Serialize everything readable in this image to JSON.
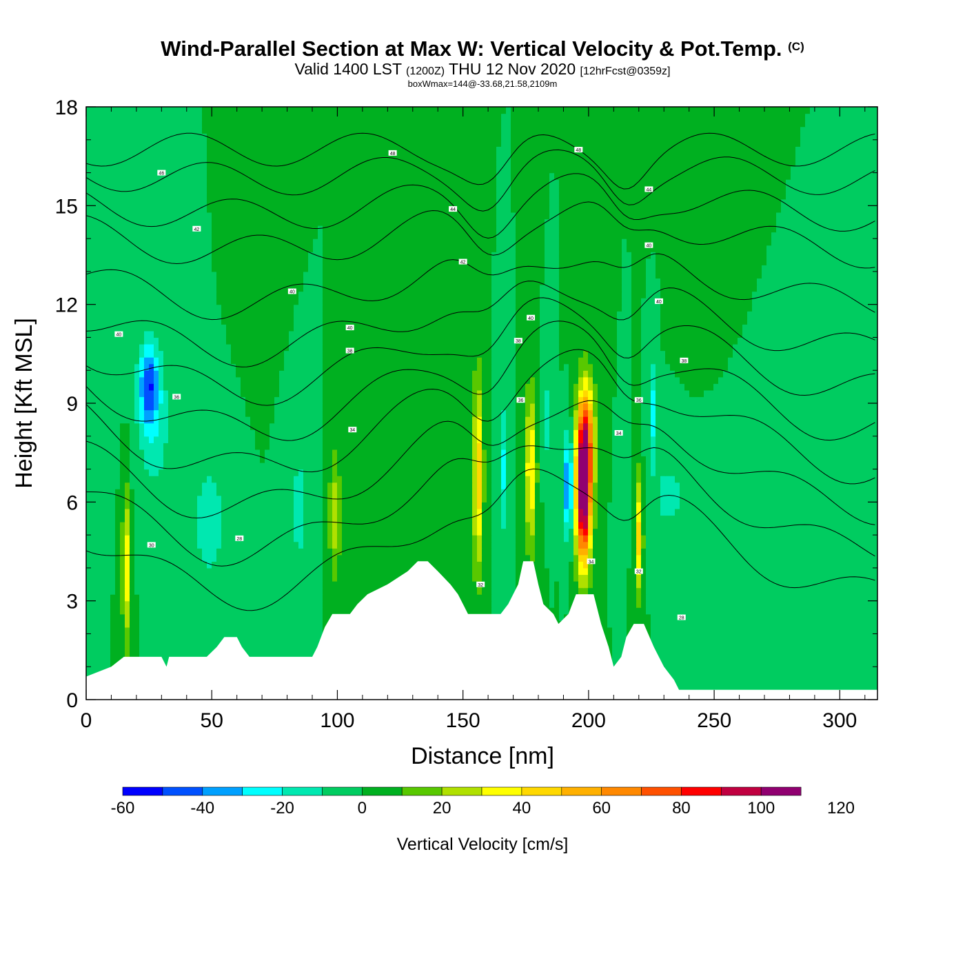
{
  "header": {
    "title": "Wind-Parallel Section at Max W: Vertical Velocity & Pot.Temp.",
    "copyright": "(C)",
    "valid_prefix": "Valid 1400 LST",
    "valid_zulu": "(1200Z)",
    "valid_date": "THU 12 Nov 2020",
    "forecast": "[12hrFcst@0359z]",
    "box_info": "boxWmax=144@-33.68,21.58,2109m"
  },
  "chart_data": {
    "type": "heatmap",
    "title": "Wind-Parallel Section at Max W: Vertical Velocity & Pot.Temp.",
    "xlabel": "Distance [nm]",
    "ylabel": "Height [Kft MSL]",
    "xlim": [
      0,
      315
    ],
    "ylim": [
      0,
      18
    ],
    "xticks": [
      0,
      50,
      100,
      150,
      200,
      250,
      300
    ],
    "yticks": [
      0,
      3,
      6,
      9,
      12,
      15,
      18
    ],
    "colorbar": {
      "label": "Vertical Velocity [cm/s]",
      "ticks": [
        -60,
        -40,
        -20,
        0,
        20,
        40,
        60,
        80,
        100,
        120
      ],
      "levels": [
        -60,
        -50,
        -40,
        -30,
        -20,
        -10,
        0,
        10,
        20,
        30,
        40,
        50,
        60,
        70,
        80,
        90,
        100,
        110,
        120
      ],
      "colors": [
        "#0000ff",
        "#0050ff",
        "#00a0ff",
        "#00ffff",
        "#00e8b0",
        "#00cc60",
        "#00b020",
        "#58c800",
        "#b0e000",
        "#ffff00",
        "#ffd800",
        "#ffb000",
        "#ff8800",
        "#ff5000",
        "#ff0000",
        "#c00040",
        "#900070"
      ]
    },
    "background_w": 0,
    "terrain": [
      [
        0,
        0.7
      ],
      [
        10,
        1.0
      ],
      [
        15,
        1.3
      ],
      [
        30,
        1.3
      ],
      [
        32,
        1.0
      ],
      [
        33,
        1.3
      ],
      [
        48,
        1.3
      ],
      [
        52,
        1.6
      ],
      [
        55,
        1.9
      ],
      [
        60,
        1.9
      ],
      [
        62,
        1.6
      ],
      [
        65,
        1.3
      ],
      [
        90,
        1.3
      ],
      [
        92,
        1.6
      ],
      [
        95,
        2.2
      ],
      [
        98,
        2.6
      ],
      [
        105,
        2.6
      ],
      [
        108,
        2.9
      ],
      [
        112,
        3.2
      ],
      [
        120,
        3.5
      ],
      [
        128,
        3.9
      ],
      [
        132,
        4.2
      ],
      [
        136,
        4.2
      ],
      [
        140,
        3.9
      ],
      [
        145,
        3.5
      ],
      [
        148,
        3.2
      ],
      [
        150,
        2.9
      ],
      [
        152,
        2.6
      ],
      [
        165,
        2.6
      ],
      [
        168,
        2.9
      ],
      [
        172,
        3.5
      ],
      [
        174,
        4.2
      ],
      [
        178,
        4.2
      ],
      [
        180,
        3.5
      ],
      [
        182,
        2.9
      ],
      [
        186,
        2.6
      ],
      [
        188,
        2.3
      ],
      [
        192,
        2.6
      ],
      [
        195,
        3.2
      ],
      [
        202,
        3.2
      ],
      [
        205,
        2.3
      ],
      [
        208,
        1.6
      ],
      [
        210,
        1.0
      ],
      [
        213,
        1.3
      ],
      [
        215,
        1.9
      ],
      [
        218,
        2.3
      ],
      [
        222,
        2.3
      ],
      [
        226,
        1.6
      ],
      [
        230,
        1.0
      ],
      [
        234,
        0.6
      ],
      [
        236,
        0.3
      ],
      [
        315,
        0.3
      ]
    ],
    "w_features": [
      {
        "x": 25,
        "y": 9.6,
        "sx": 4,
        "sy": 1.2,
        "w": -42
      },
      {
        "x": 27,
        "y": 8.2,
        "sx": 7,
        "sy": 2.2,
        "w": -16
      },
      {
        "x": 16,
        "y": 4.0,
        "sx": 1.6,
        "sy": 2.5,
        "w": 36
      },
      {
        "x": 49,
        "y": 5.4,
        "sx": 6,
        "sy": 1.8,
        "w": -18
      },
      {
        "x": 85,
        "y": 5.8,
        "sx": 4,
        "sy": 2.0,
        "w": -14
      },
      {
        "x": 99,
        "y": 5.6,
        "sx": 2.5,
        "sy": 2.0,
        "w": 25
      },
      {
        "x": 156,
        "y": 6.8,
        "sx": 2.0,
        "sy": 3.0,
        "w": 48
      },
      {
        "x": 166,
        "y": 7.0,
        "sx": 2.0,
        "sy": 2.0,
        "w": -22
      },
      {
        "x": 177,
        "y": 7.0,
        "sx": 2.2,
        "sy": 2.5,
        "w": 42
      },
      {
        "x": 183,
        "y": 8.5,
        "sx": 2.0,
        "sy": 1.5,
        "w": -15
      },
      {
        "x": 192,
        "y": 6.5,
        "sx": 1.5,
        "sy": 1.5,
        "w": -55
      },
      {
        "x": 198,
        "y": 6.2,
        "sx": 3.0,
        "sy": 2.2,
        "w": 108
      },
      {
        "x": 199,
        "y": 8.0,
        "sx": 3.5,
        "sy": 1.8,
        "w": 55
      },
      {
        "x": 220,
        "y": 5.0,
        "sx": 1.6,
        "sy": 1.8,
        "w": 45
      },
      {
        "x": 226,
        "y": 8.8,
        "sx": 1.2,
        "sy": 1.5,
        "w": -25
      },
      {
        "x": 232,
        "y": 6.2,
        "sx": 9,
        "sy": 1.6,
        "w": -12
      },
      {
        "x": 135,
        "y": 16.0,
        "sx": 6,
        "sy": 2.0,
        "w": 6
      },
      {
        "x": 70,
        "y": 14.0,
        "sx": 5,
        "sy": 2.0,
        "w": 5
      },
      {
        "x": 240,
        "y": 15.0,
        "sx": 5,
        "sy": 3.0,
        "w": 4
      }
    ],
    "isentropes": [
      {
        "label": "48",
        "y0": 16.7,
        "slope": 0.0
      },
      {
        "label": "46",
        "y0": 16.0,
        "slope": 0.01
      },
      {
        "label": "44",
        "y0": 15.1,
        "slope": 0.02
      },
      {
        "label": "42",
        "y0": 14.2,
        "slope": 0.03
      },
      {
        "label": "40",
        "y0": 12.8,
        "slope": 0.04
      },
      {
        "label": "38",
        "y0": 11.6,
        "slope": 0.05
      },
      {
        "label": "36",
        "y0": 10.6,
        "slope": 0.06
      },
      {
        "label": "34",
        "y0": 9.6,
        "slope": 0.07
      },
      {
        "label": "32",
        "y0": 8.6,
        "slope": 0.08
      },
      {
        "label": "30",
        "y0": 7.4,
        "slope": 0.08
      },
      {
        "label": "28",
        "y0": 6.3,
        "slope": 0.09
      },
      {
        "label": "26",
        "y0": 5.0,
        "slope": 0.09
      }
    ],
    "contour_labels": [
      {
        "x": 30,
        "y": 16.0,
        "text": "46"
      },
      {
        "x": 122,
        "y": 16.6,
        "text": "48"
      },
      {
        "x": 196,
        "y": 16.7,
        "text": "48"
      },
      {
        "x": 44,
        "y": 14.3,
        "text": "42"
      },
      {
        "x": 146,
        "y": 14.9,
        "text": "44"
      },
      {
        "x": 224,
        "y": 15.5,
        "text": "44"
      },
      {
        "x": 82,
        "y": 12.4,
        "text": "40"
      },
      {
        "x": 150,
        "y": 13.3,
        "text": "42"
      },
      {
        "x": 224,
        "y": 13.8,
        "text": "40"
      },
      {
        "x": 13,
        "y": 11.1,
        "text": "40"
      },
      {
        "x": 105,
        "y": 11.3,
        "text": "40"
      },
      {
        "x": 177,
        "y": 11.6,
        "text": "40"
      },
      {
        "x": 228,
        "y": 12.1,
        "text": "40"
      },
      {
        "x": 105,
        "y": 10.6,
        "text": "38"
      },
      {
        "x": 172,
        "y": 10.9,
        "text": "38"
      },
      {
        "x": 238,
        "y": 10.3,
        "text": "38"
      },
      {
        "x": 36,
        "y": 9.2,
        "text": "36"
      },
      {
        "x": 173,
        "y": 9.1,
        "text": "36"
      },
      {
        "x": 220,
        "y": 9.1,
        "text": "36"
      },
      {
        "x": 106,
        "y": 8.2,
        "text": "34"
      },
      {
        "x": 212,
        "y": 8.1,
        "text": "34"
      },
      {
        "x": 26,
        "y": 4.7,
        "text": "30"
      },
      {
        "x": 61,
        "y": 4.9,
        "text": "28"
      },
      {
        "x": 157,
        "y": 3.5,
        "text": "32"
      },
      {
        "x": 201,
        "y": 4.2,
        "text": "34"
      },
      {
        "x": 220,
        "y": 3.9,
        "text": "32"
      },
      {
        "x": 237,
        "y": 2.5,
        "text": "28"
      }
    ]
  }
}
